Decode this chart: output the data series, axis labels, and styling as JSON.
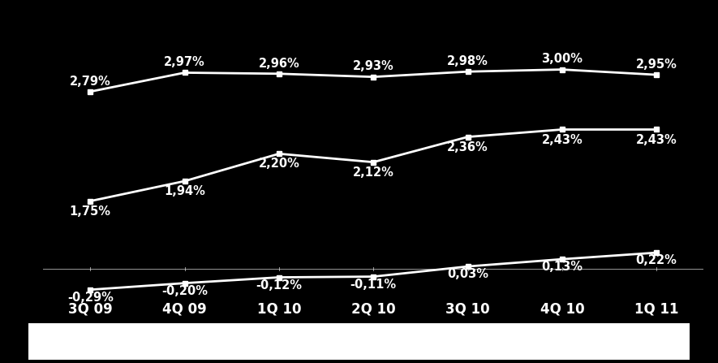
{
  "categories": [
    "3Q 09",
    "4Q 09",
    "1Q 10",
    "2Q 10",
    "3Q 10",
    "4Q 10",
    "1Q 11"
  ],
  "line1_values": [
    2.79,
    2.97,
    2.96,
    2.93,
    2.98,
    3.0,
    2.95
  ],
  "line1_labels": [
    "2,79%",
    "2,97%",
    "2,96%",
    "2,93%",
    "2,98%",
    "3,00%",
    "2,95%"
  ],
  "line2_values": [
    1.75,
    1.94,
    2.2,
    2.12,
    2.36,
    2.43,
    2.43
  ],
  "line2_labels": [
    "1,75%",
    "1,94%",
    "2,20%",
    "2,12%",
    "2,36%",
    "2,43%",
    "2,43%"
  ],
  "line3_values": [
    -0.29,
    -0.2,
    -0.12,
    -0.11,
    0.03,
    0.13,
    0.22
  ],
  "line3_labels": [
    "-0,29%",
    "-0,20%",
    "-0,12%",
    "-0,11%",
    "0,03%",
    "0,13%",
    "0,22%"
  ],
  "background_color": "#000000",
  "line_color": "#ffffff",
  "text_color": "#ffffff",
  "label_fontsize": 10.5,
  "xtick_fontsize": 12,
  "line_width": 2.0,
  "marker": "s",
  "marker_size": 5
}
